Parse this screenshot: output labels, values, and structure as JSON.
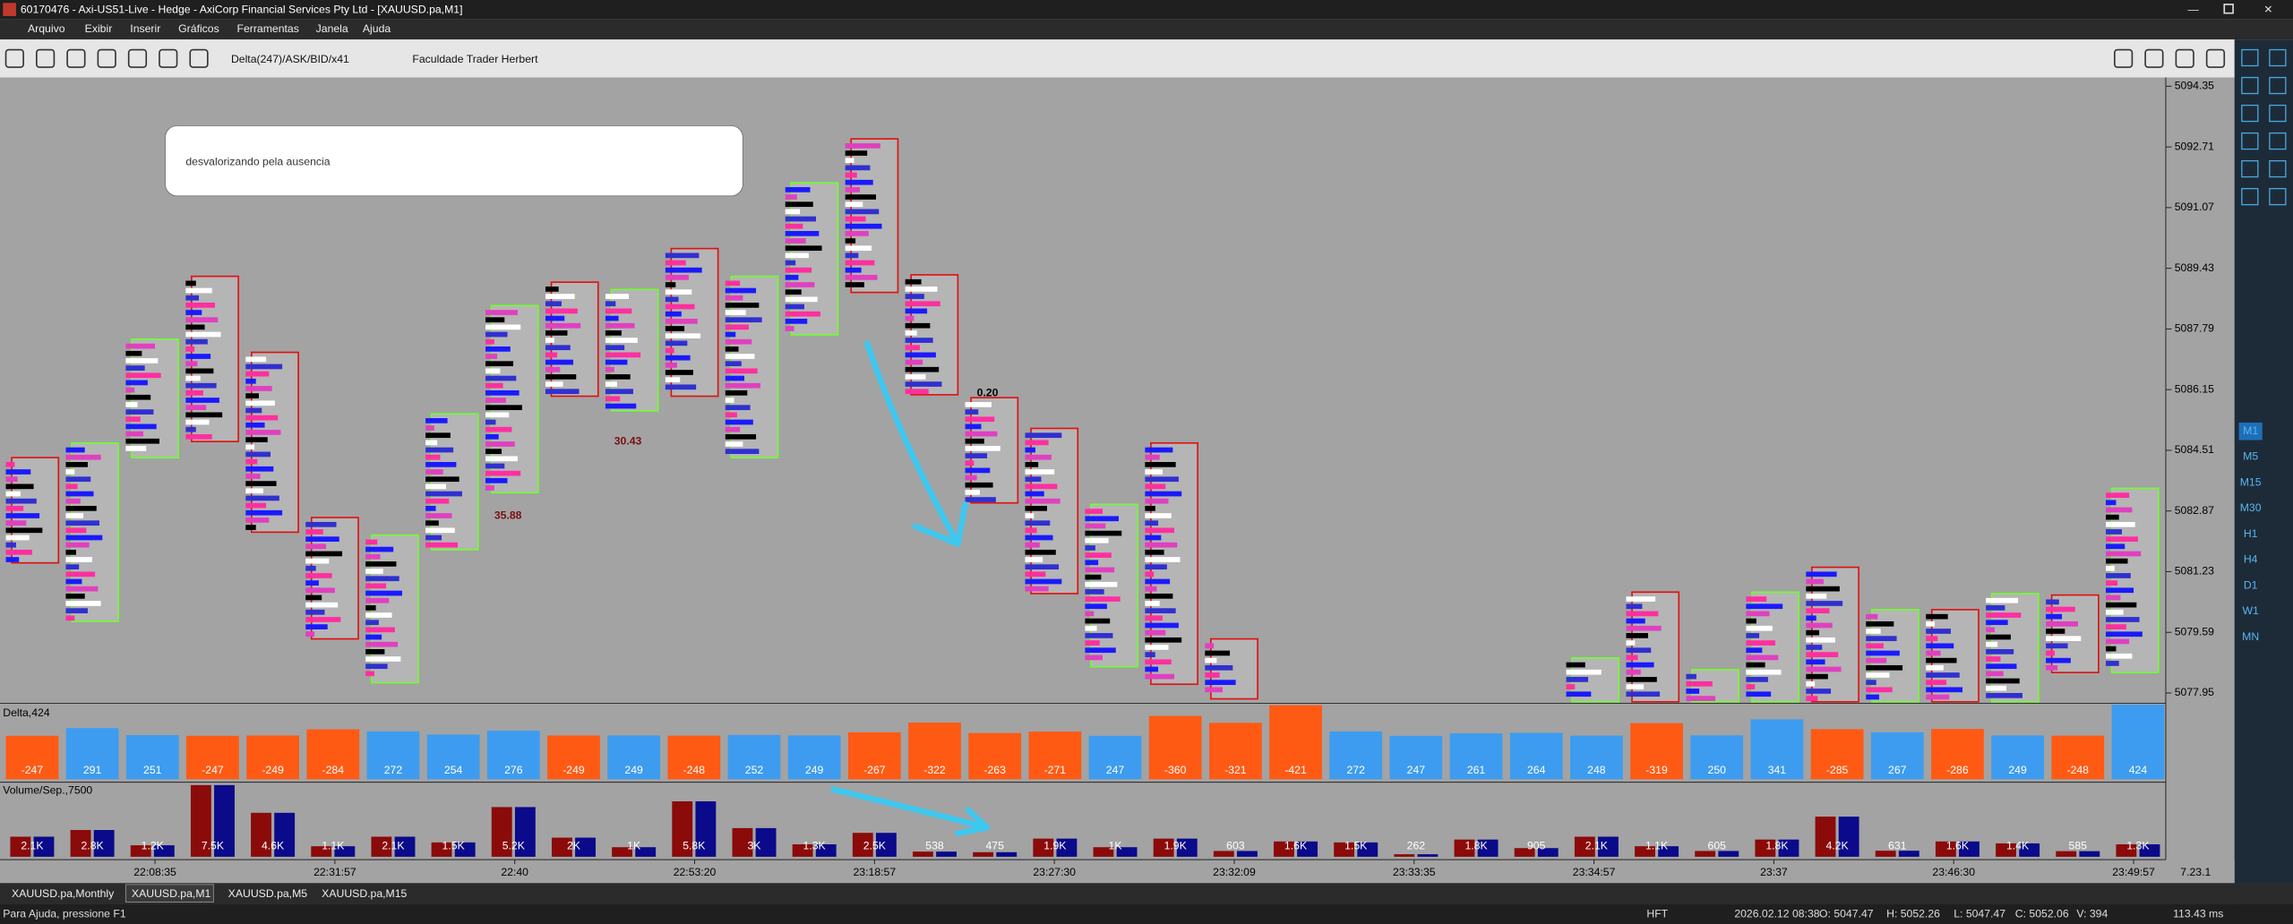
{
  "window": {
    "title": "60170476 - Axi-US51-Live - Hedge - AxiCorp Financial Services Pty Ltd - [XAUUSD.pa,M1]"
  },
  "menu": [
    "Arquivo",
    "Exibir",
    "Inserir",
    "Gráficos",
    "Ferramentas",
    "Janela",
    "Ajuda"
  ],
  "toolbar": {
    "indicator": "Delta(247)/ASK/BID/x41",
    "name": "Faculdade Trader Herbert"
  },
  "chart": {
    "annotation": "desvalorizando pela ausencia",
    "price_labels": [
      5094.35,
      5092.71,
      5091.07,
      5089.43,
      5087.79,
      5086.15,
      5084.51,
      5082.87,
      5081.23,
      5079.59,
      5077.95
    ],
    "marks": [
      "35.88",
      "30.43",
      "0.20"
    ]
  },
  "delta": {
    "label": "Delta,424",
    "values": [
      -247,
      291,
      251,
      -247,
      -249,
      -284,
      272,
      254,
      276,
      -249,
      249,
      -248,
      252,
      249,
      -267,
      -322,
      -263,
      -271,
      247,
      -360,
      -321,
      -421,
      272,
      247,
      261,
      264,
      248,
      -319,
      250,
      341,
      -285,
      267,
      -286,
      249,
      -248,
      424
    ]
  },
  "volume": {
    "label": "Volume/Sep.,7500",
    "values": [
      {
        "value": 2100,
        "label": "2.1K"
      },
      {
        "value": 2800,
        "label": "2.8K"
      },
      {
        "value": 1200,
        "label": "1.2K"
      },
      {
        "value": 7500,
        "label": "7.5K"
      },
      {
        "value": 4600,
        "label": "4.6K"
      },
      {
        "value": 1100,
        "label": "1.1K"
      },
      {
        "value": 2100,
        "label": "2.1K"
      },
      {
        "value": 1500,
        "label": "1.5K"
      },
      {
        "value": 5200,
        "label": "5.2K"
      },
      {
        "value": 2000,
        "label": "2K"
      },
      {
        "value": 1000,
        "label": "1K"
      },
      {
        "value": 5800,
        "label": "5.8K"
      },
      {
        "value": 3000,
        "label": "3K"
      },
      {
        "value": 1300,
        "label": "1.3K"
      },
      {
        "value": 2500,
        "label": "2.5K"
      },
      538,
      475,
      {
        "value": 1900,
        "label": "1.9K"
      },
      {
        "value": 1000,
        "label": "1K"
      },
      {
        "value": 1900,
        "label": "1.9K"
      },
      603,
      {
        "value": 1600,
        "label": "1.6K"
      },
      {
        "value": 1500,
        "label": "1.5K"
      },
      262,
      {
        "value": 1800,
        "label": "1.8K"
      },
      905,
      {
        "value": 2100,
        "label": "2.1K"
      },
      {
        "value": 1100,
        "label": "1.1K"
      },
      605,
      {
        "value": 1800,
        "label": "1.8K"
      },
      {
        "value": 4200,
        "label": "4.2K"
      },
      631,
      {
        "value": 1600,
        "label": "1.6K"
      },
      {
        "value": 1400,
        "label": "1.4K"
      },
      585,
      {
        "value": 1300,
        "label": "1.3K"
      }
    ]
  },
  "time_labels": [
    "22:08:35",
    "22:31:57",
    "22:40",
    "22:53:20",
    "23:18:57",
    "23:27:30",
    "23:32:09",
    "23:33:35",
    "23:34:57",
    "23:37",
    "23:46:30",
    "23:49:57"
  ],
  "version": "7.23.1",
  "tabs": [
    "XAUUSD.pa,Monthly",
    "XAUUSD.pa,M1",
    "XAUUSD.pa,M5",
    "XAUUSD.pa,M15"
  ],
  "status": {
    "help": "Para Ajuda, pressione F1",
    "mode": "HFT",
    "time": "2026.02.12 08:38",
    "open": "O: 5047.47",
    "high": "H: 5052.26",
    "low": "L: 5047.47",
    "close": "C: 5052.06",
    "vol": "V: 394",
    "ping": "113.43 ms"
  },
  "timeframes": [
    "M1",
    "M5",
    "M15",
    "M30",
    "H1",
    "H4",
    "D1",
    "W1",
    "MN"
  ]
}
